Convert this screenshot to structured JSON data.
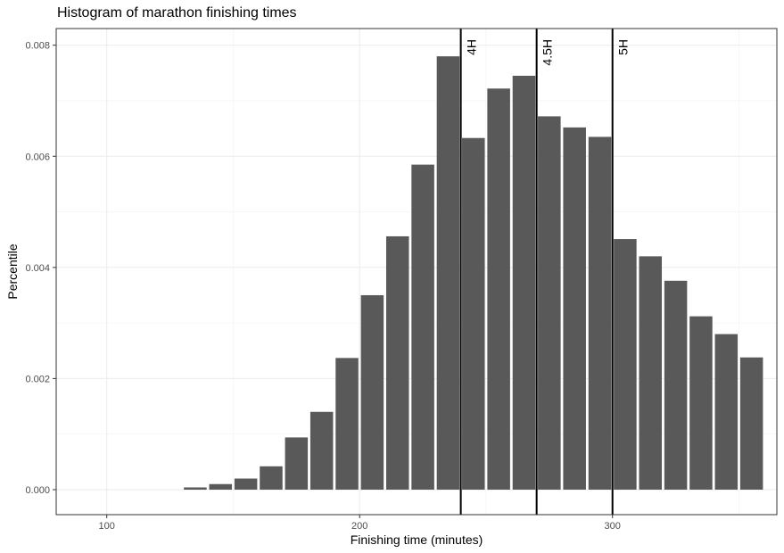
{
  "chart_data": {
    "type": "bar",
    "title": "Histogram of marathon finishing times",
    "xlabel": "Finishing time (minutes)",
    "ylabel": "Percentile",
    "xlim": [
      80,
      365
    ],
    "ylim": [
      -0.00045,
      0.0083
    ],
    "x_ticks": [
      {
        "value": 100,
        "label": "100"
      },
      {
        "value": 200,
        "label": "200"
      },
      {
        "value": 300,
        "label": "300"
      }
    ],
    "y_ticks": [
      {
        "value": 0,
        "label": "0.000"
      },
      {
        "value": 0.002,
        "label": "0.002"
      },
      {
        "value": 0.004,
        "label": "0.004"
      },
      {
        "value": 0.006,
        "label": "0.006"
      },
      {
        "value": 0.008,
        "label": "0.008"
      }
    ],
    "grid": true,
    "bin_width": 10,
    "bin_centers": [
      135,
      145,
      155,
      165,
      175,
      185,
      195,
      205,
      215,
      225,
      235,
      245,
      255,
      265,
      275,
      285,
      295,
      305,
      315,
      325,
      335,
      345,
      355
    ],
    "values": [
      4e-05,
      0.0001,
      0.0002,
      0.00042,
      0.00094,
      0.0014,
      0.00237,
      0.0035,
      0.00456,
      0.00585,
      0.0078,
      0.00633,
      0.00722,
      0.00745,
      0.00672,
      0.00652,
      0.00635,
      0.00451,
      0.0042,
      0.00376,
      0.00312,
      0.0028,
      0.00238
    ],
    "bar_color": "#595959",
    "vlines": [
      {
        "x": 240,
        "label": "4H"
      },
      {
        "x": 270,
        "label": "4.5H"
      },
      {
        "x": 300,
        "label": "5H"
      }
    ]
  }
}
